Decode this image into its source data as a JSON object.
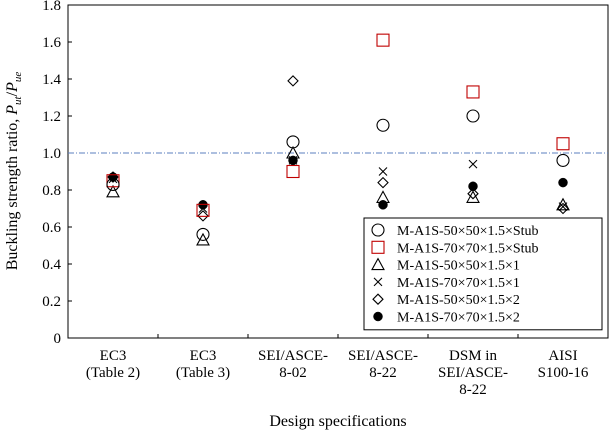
{
  "chart_data": {
    "type": "scatter",
    "title": "",
    "xlabel": "Design specifications",
    "ylabel_prefix": "Buckling strength ratio, ",
    "ylabel_num_base": "P",
    "ylabel_num_sub": "ut",
    "ylabel_sep": "/",
    "ylabel_den_base": "P",
    "ylabel_den_sub": "ue",
    "ylim": [
      0,
      1.8
    ],
    "ytick_step": 0.2,
    "yticks": [
      "0",
      "0.2",
      "0.4",
      "0.6",
      "0.8",
      "1.0",
      "1.2",
      "1.4",
      "1.6",
      "1.8"
    ],
    "reference_line": 1.0,
    "reference_color": "#5b7fbf",
    "legend_position": "lower-right",
    "categories": [
      [
        "EC3",
        "(Table 2)"
      ],
      [
        "EC3",
        "(Table 3)"
      ],
      [
        "SEI/ASCE-",
        "8-02"
      ],
      [
        "SEI/ASCE-",
        "8-22"
      ],
      [
        "DSM in",
        "SEI/ASCE-",
        "8-22"
      ],
      [
        "AISI",
        "S100-16"
      ]
    ],
    "series": [
      {
        "name": "M-A1S-50×50×1.5×Stub",
        "marker": "circle-open",
        "color": "#000000",
        "values": [
          0.83,
          0.56,
          1.06,
          1.15,
          1.2,
          0.96
        ]
      },
      {
        "name": "M-A1S-70×70×1.5×Stub",
        "marker": "square-open",
        "color": "#c00000",
        "values": [
          0.85,
          0.69,
          0.9,
          1.61,
          1.33,
          1.05
        ]
      },
      {
        "name": "M-A1S-50×50×1.5×1",
        "marker": "triangle-open",
        "color": "#000000",
        "values": [
          0.79,
          0.53,
          1.0,
          0.76,
          0.76,
          0.72
        ]
      },
      {
        "name": "M-A1S-70×70×1.5×1",
        "marker": "cross",
        "color": "#000000",
        "values": [
          0.86,
          0.7,
          0.96,
          0.9,
          0.94,
          0.71
        ]
      },
      {
        "name": "M-A1S-50×50×1.5×2",
        "marker": "diamond-open",
        "color": "#000000",
        "values": [
          0.87,
          0.66,
          1.39,
          0.84,
          0.78,
          0.7
        ]
      },
      {
        "name": "M-A1S-70×70×1.5×2",
        "marker": "circle-filled",
        "color": "#000000",
        "values": [
          0.87,
          0.72,
          0.96,
          0.72,
          0.82,
          0.84
        ]
      }
    ]
  }
}
